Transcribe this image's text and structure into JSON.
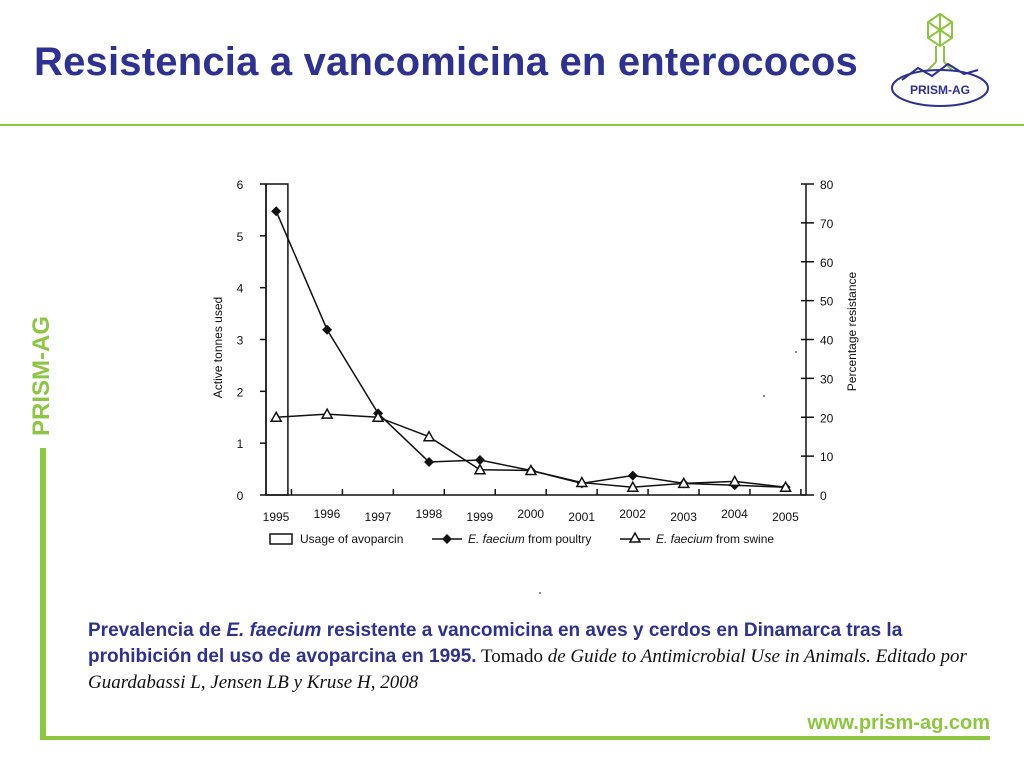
{
  "slide": {
    "title": "Resistencia a vancomicina en enterococos",
    "side_brand": "PRISM-AG",
    "logo_text": "PRISM-AG",
    "website": "www.prism-ag.com"
  },
  "caption": {
    "bold_1": "Prevalencia de ",
    "italic_species": "E. faecium",
    "bold_2": " resistente a vancomicina en aves y cerdos en Dinamarca tras la prohibición del uso de avoparcina en 1995.",
    "source_plain": " Tomado ",
    "source_italic": "de Guide to Antimicrobial Use in Animals. Editado por Guardabassi L, Jensen LB y Kruse H, 2008"
  },
  "colors": {
    "title": "#2d3192",
    "accent_green": "#8dc63f",
    "chart_ink": "#111111"
  },
  "chart_data": {
    "type": "line",
    "x_tick_labels": [
      "1995",
      "1996",
      "1997",
      "1998",
      "1999",
      "2000",
      "2001",
      "2002",
      "2003",
      "2004",
      "2005"
    ],
    "y_left": {
      "label": "Active tonnes used",
      "range": [
        0,
        6
      ],
      "ticks": [
        "0",
        "1",
        "2",
        "3",
        "4",
        "5",
        "6"
      ]
    },
    "y_right": {
      "label": "Percentage resistance",
      "range": [
        0,
        80
      ],
      "ticks": [
        "0",
        "10",
        "20",
        "30",
        "40",
        "50",
        "60",
        "70",
        "80"
      ]
    },
    "bar": {
      "name": "Usage of avoparcin",
      "x": 1995,
      "value_tonnes": 6
    },
    "series": [
      {
        "name": "E. faecium from poultry",
        "marker": "diamond",
        "points": [
          [
            1995.2,
            73
          ],
          [
            1996.2,
            42.5
          ],
          [
            1997.2,
            21
          ],
          [
            1998.2,
            8.5
          ],
          [
            1999.2,
            9
          ],
          [
            2000.2,
            6.3
          ],
          [
            2001.2,
            3
          ],
          [
            2002.2,
            5
          ],
          [
            2003.2,
            3
          ],
          [
            2004.2,
            2.5
          ],
          [
            2005.2,
            2
          ]
        ]
      },
      {
        "name": "E. faecium from swine",
        "marker": "triangle",
        "points": [
          [
            1995.2,
            20
          ],
          [
            1996.2,
            20.8
          ],
          [
            1997.2,
            20
          ],
          [
            1998.2,
            15
          ],
          [
            1999.2,
            6.5
          ],
          [
            2000.2,
            6.3
          ],
          [
            2001.2,
            3.2
          ],
          [
            2002.2,
            2
          ],
          [
            2003.2,
            3
          ],
          [
            2004.2,
            3.5
          ],
          [
            2005.2,
            2
          ]
        ]
      }
    ],
    "legend": [
      {
        "label": "Usage of avoparcin",
        "marker": "box"
      },
      {
        "label_italic": "E. faecium",
        "label_rest": " from poultry",
        "marker": "diamond"
      },
      {
        "label_italic": "E. faecium",
        "label_rest": " from swine",
        "marker": "triangle"
      }
    ],
    "legend_position": "bottom"
  }
}
